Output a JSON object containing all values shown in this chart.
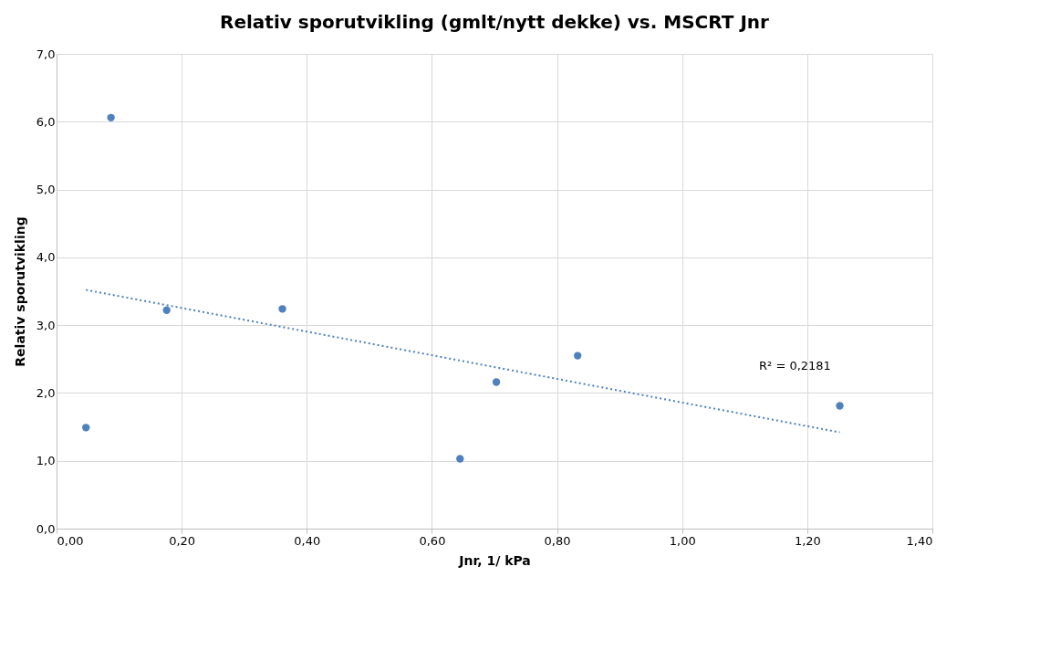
{
  "chart_data": {
    "type": "scatter",
    "title": "Relativ sporutvikling  (gmlt/nytt dekke) vs. MSCRT Jnr",
    "xlabel": "Jnr, 1/ kPa",
    "ylabel": "Relativ sporutvikling",
    "series": [
      {
        "marker": "circle",
        "color": "#4f81bd",
        "x": [
          0.047,
          0.087,
          0.176,
          0.361,
          0.645,
          0.703,
          0.833,
          1.252
        ],
        "values": [
          1.49,
          6.06,
          3.22,
          3.24,
          1.03,
          2.16,
          2.55,
          1.81
        ]
      },
      {
        "type": "line",
        "color": "#4f81bd",
        "line_style": "dotted",
        "x": [
          0.047,
          1.252
        ],
        "values": [
          3.52,
          1.42
        ]
      }
    ],
    "annotations": [
      "R² = 0,2181"
    ],
    "xlim": [
      0,
      1.4
    ],
    "xticks": [
      {
        "value": 0,
        "label": "0,00"
      },
      {
        "value": 0.2,
        "label": "0,20"
      },
      {
        "value": 0.4,
        "label": "0,40"
      },
      {
        "value": 0.6,
        "label": "0,60"
      },
      {
        "value": 0.8,
        "label": "0,80"
      },
      {
        "value": 1.0,
        "label": "1,00"
      },
      {
        "value": 1.2,
        "label": "1,20"
      },
      {
        "value": 1.4,
        "label": "1,40"
      }
    ],
    "ylim": [
      0,
      7
    ],
    "yticks": [
      {
        "value": 0,
        "label": "0,0"
      },
      {
        "value": 1,
        "label": "1,0"
      },
      {
        "value": 2,
        "label": "2,0"
      },
      {
        "value": 3,
        "label": "3,0"
      },
      {
        "value": 4,
        "label": "4,0"
      },
      {
        "value": 5,
        "label": "5,0"
      },
      {
        "value": 6,
        "label": "6,0"
      },
      {
        "value": 7,
        "label": "7,0"
      }
    ],
    "grid": true
  }
}
